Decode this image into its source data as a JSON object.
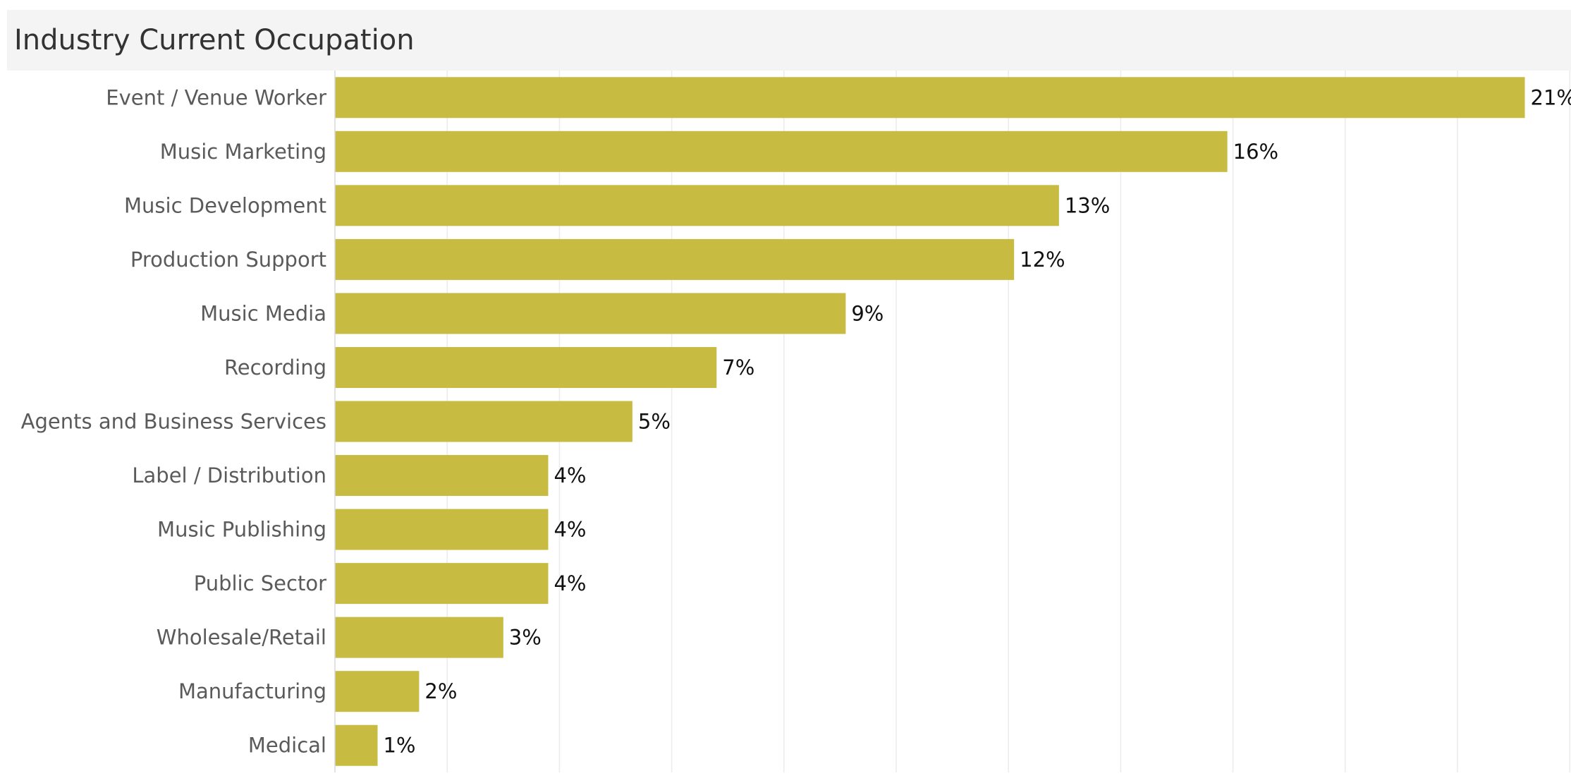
{
  "page": {
    "title": "Industry Current Occupation"
  },
  "colors": {
    "bar": "#c8bb42",
    "category_label": "#5a5a5a",
    "value_label": "#111111",
    "gridline": "#ececec",
    "title_background": "#f4f4f4"
  },
  "chart_data": {
    "type": "bar",
    "orientation": "horizontal",
    "title": "Industry Current Occupation",
    "xlabel": "",
    "ylabel": "",
    "categories": [
      "Event / Venue Worker",
      "Music Marketing",
      "Music Development",
      "Production Support",
      "Music Media",
      "Recording",
      "Agents and Business Services",
      "Label / Distribution",
      "Music Publishing",
      "Public Sector",
      "Wholesale/Retail",
      "Manufacturing",
      "Medical"
    ],
    "values": [
      21.2,
      15.9,
      12.9,
      12.1,
      9.1,
      6.8,
      5.3,
      3.8,
      3.8,
      3.8,
      3.0,
      1.5,
      0.76
    ],
    "value_labels": [
      "21%",
      "16%",
      "13%",
      "12%",
      "9%",
      "7%",
      "5%",
      "4%",
      "4%",
      "4%",
      "3%",
      "2%",
      "1%"
    ],
    "unit": "%",
    "xlim": [
      0,
      22
    ],
    "grid": true,
    "x_ticks_shown": false,
    "legend": "none"
  }
}
